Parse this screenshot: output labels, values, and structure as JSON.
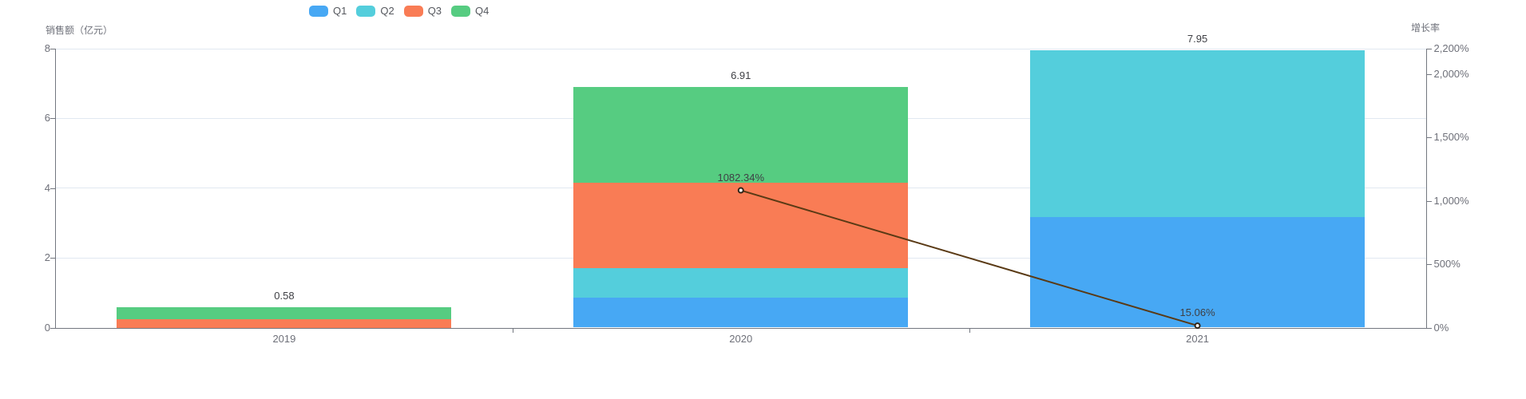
{
  "legend": {
    "items": [
      {
        "label": "Q1",
        "color": "#47a8f4"
      },
      {
        "label": "Q2",
        "color": "#54cedc"
      },
      {
        "label": "Q3",
        "color": "#f97c55"
      },
      {
        "label": "Q4",
        "color": "#56cc81"
      }
    ]
  },
  "left_axis": {
    "title": "销售额（亿元）",
    "tick_values": [
      0,
      2,
      4,
      6,
      8
    ],
    "tick_labels": [
      "0",
      "2",
      "4",
      "6",
      "8"
    ],
    "max": 8
  },
  "right_axis": {
    "title": "增长率",
    "tick_values": [
      0,
      500,
      1000,
      1500,
      2000,
      2200
    ],
    "tick_labels": [
      "0%",
      "500%",
      "1,000%",
      "1,500%",
      "2,000%",
      "2,200%"
    ],
    "max": 2200
  },
  "chart_data": {
    "type": "bar-line-combo",
    "categories": [
      "2019",
      "2020",
      "2021"
    ],
    "series": [
      {
        "name": "Q1",
        "type": "bar",
        "stack": "total",
        "color": "#47a8f4",
        "values": [
          0,
          0.85,
          3.18
        ]
      },
      {
        "name": "Q2",
        "type": "bar",
        "stack": "total",
        "color": "#54cedc",
        "values": [
          0,
          0.85,
          4.77
        ]
      },
      {
        "name": "Q3",
        "type": "bar",
        "stack": "total",
        "color": "#f97c55",
        "values": [
          0.25,
          2.45,
          0
        ]
      },
      {
        "name": "Q4",
        "type": "bar",
        "stack": "total",
        "color": "#56cc81",
        "values": [
          0.33,
          2.76,
          0
        ]
      },
      {
        "name": "增长率",
        "type": "line",
        "axis": "right",
        "color": "#5a3a15",
        "values": [
          null,
          1082.34,
          15.06
        ],
        "point_labels": [
          "",
          "1082.34%",
          "15.06%"
        ]
      }
    ],
    "stack_total_labels": [
      "0.58",
      "6.91",
      "7.95"
    ],
    "title": "",
    "xlabel": "",
    "ylabel_left": "销售额（亿元）",
    "ylabel_right": "增长率",
    "ylim_left": [
      0,
      8
    ],
    "ylim_right_pct": [
      0,
      2200
    ],
    "grid": "horizontal-light",
    "legend_position": "top-left"
  },
  "colors": {
    "grid": "#e1e8f1",
    "axis": "#73777f",
    "tick_text": "#6e7079",
    "value_text": "#3f4045",
    "line_marker_fill": "#ffffff",
    "line_marker_stroke": "#2f2317"
  }
}
